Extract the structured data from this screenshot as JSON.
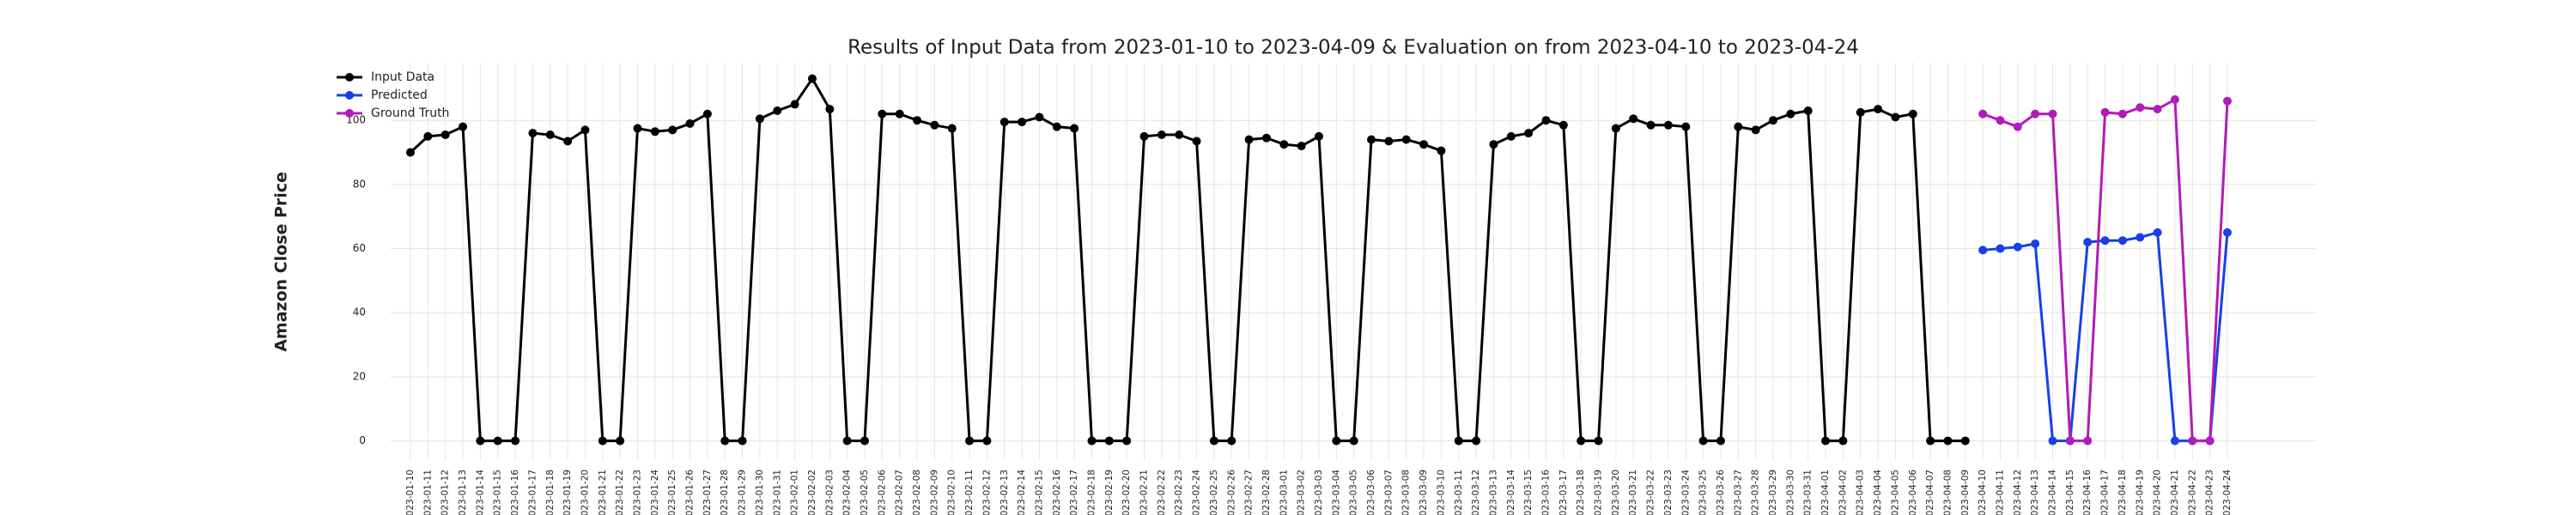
{
  "chart_data": {
    "type": "line",
    "title": "Results of Input Data from 2023-01-10 to 2023-04-09 & Evaluation on from 2023-04-10 to 2023-04-24",
    "ylabel": "Amazon Close Price",
    "categories": [
      "2023-01-10",
      "2023-01-11",
      "2023-01-12",
      "2023-01-13",
      "2023-01-14",
      "2023-01-15",
      "2023-01-16",
      "2023-01-17",
      "2023-01-18",
      "2023-01-19",
      "2023-01-20",
      "2023-01-21",
      "2023-01-22",
      "2023-01-23",
      "2023-01-24",
      "2023-01-25",
      "2023-01-26",
      "2023-01-27",
      "2023-01-28",
      "2023-01-29",
      "2023-01-30",
      "2023-01-31",
      "2023-02-01",
      "2023-02-02",
      "2023-02-03",
      "2023-02-04",
      "2023-02-05",
      "2023-02-06",
      "2023-02-07",
      "2023-02-08",
      "2023-02-09",
      "2023-02-10",
      "2023-02-11",
      "2023-02-12",
      "2023-02-13",
      "2023-02-14",
      "2023-02-15",
      "2023-02-16",
      "2023-02-17",
      "2023-02-18",
      "2023-02-19",
      "2023-02-20",
      "2023-02-21",
      "2023-02-22",
      "2023-02-23",
      "2023-02-24",
      "2023-02-25",
      "2023-02-26",
      "2023-02-27",
      "2023-02-28",
      "2023-03-01",
      "2023-03-02",
      "2023-03-03",
      "2023-03-04",
      "2023-03-05",
      "2023-03-06",
      "2023-03-07",
      "2023-03-08",
      "2023-03-09",
      "2023-03-10",
      "2023-03-11",
      "2023-03-12",
      "2023-03-13",
      "2023-03-14",
      "2023-03-15",
      "2023-03-16",
      "2023-03-17",
      "2023-03-18",
      "2023-03-19",
      "2023-03-20",
      "2023-03-21",
      "2023-03-22",
      "2023-03-23",
      "2023-03-24",
      "2023-03-25",
      "2023-03-26",
      "2023-03-27",
      "2023-03-28",
      "2023-03-29",
      "2023-03-30",
      "2023-03-31",
      "2023-04-01",
      "2023-04-02",
      "2023-04-03",
      "2023-04-04",
      "2023-04-05",
      "2023-04-06",
      "2023-04-07",
      "2023-04-08",
      "2023-04-09",
      "2023-04-10",
      "2023-04-11",
      "2023-04-12",
      "2023-04-13",
      "2023-04-14",
      "2023-04-15",
      "2023-04-16",
      "2023-04-17",
      "2023-04-18",
      "2023-04-19",
      "2023-04-20",
      "2023-04-21",
      "2023-04-22",
      "2023-04-23",
      "2023-04-24"
    ],
    "series": [
      {
        "name": "Input Data",
        "color": "#000000",
        "values": [
          90,
          95,
          95.5,
          98,
          0,
          0,
          0,
          96,
          95.5,
          93.5,
          97,
          0,
          0,
          97.5,
          96.5,
          97,
          99,
          102,
          0,
          0,
          100.5,
          103,
          105,
          113,
          103.5,
          0,
          0,
          102,
          102,
          100,
          98.5,
          97.5,
          0,
          0,
          99.5,
          99.5,
          101,
          98,
          97.5,
          0,
          0,
          0,
          95,
          95.5,
          95.5,
          93.5,
          0,
          0,
          94,
          94.5,
          92.5,
          92,
          95,
          0,
          0,
          94,
          93.5,
          94,
          92.5,
          90.5,
          0,
          0,
          92.5,
          95,
          96,
          100,
          98.5,
          0,
          0,
          97.5,
          100.5,
          98.5,
          98.5,
          98,
          0,
          0,
          98,
          97,
          100,
          102,
          103,
          0,
          0,
          102.5,
          103.5,
          101,
          102,
          0,
          0,
          0,
          null,
          null,
          null,
          null,
          null,
          null,
          null,
          null,
          null,
          null,
          null,
          null,
          null,
          null,
          null
        ]
      },
      {
        "name": "Predicted",
        "color": "#1740e6",
        "values": [
          null,
          null,
          null,
          null,
          null,
          null,
          null,
          null,
          null,
          null,
          null,
          null,
          null,
          null,
          null,
          null,
          null,
          null,
          null,
          null,
          null,
          null,
          null,
          null,
          null,
          null,
          null,
          null,
          null,
          null,
          null,
          null,
          null,
          null,
          null,
          null,
          null,
          null,
          null,
          null,
          null,
          null,
          null,
          null,
          null,
          null,
          null,
          null,
          null,
          null,
          null,
          null,
          null,
          null,
          null,
          null,
          null,
          null,
          null,
          null,
          null,
          null,
          null,
          null,
          null,
          null,
          null,
          null,
          null,
          null,
          null,
          null,
          null,
          null,
          null,
          null,
          null,
          null,
          null,
          null,
          null,
          null,
          null,
          null,
          null,
          null,
          null,
          null,
          null,
          null,
          59.5,
          60,
          60.5,
          61.5,
          0,
          0,
          62,
          62.5,
          62.5,
          63.5,
          65,
          0,
          0,
          0,
          65
        ]
      },
      {
        "name": "Ground Truth",
        "color": "#b01cb8",
        "values": [
          null,
          null,
          null,
          null,
          null,
          null,
          null,
          null,
          null,
          null,
          null,
          null,
          null,
          null,
          null,
          null,
          null,
          null,
          null,
          null,
          null,
          null,
          null,
          null,
          null,
          null,
          null,
          null,
          null,
          null,
          null,
          null,
          null,
          null,
          null,
          null,
          null,
          null,
          null,
          null,
          null,
          null,
          null,
          null,
          null,
          null,
          null,
          null,
          null,
          null,
          null,
          null,
          null,
          null,
          null,
          null,
          null,
          null,
          null,
          null,
          null,
          null,
          null,
          null,
          null,
          null,
          null,
          null,
          null,
          null,
          null,
          null,
          null,
          null,
          null,
          null,
          null,
          null,
          null,
          null,
          null,
          null,
          null,
          null,
          null,
          null,
          null,
          null,
          null,
          null,
          102,
          100,
          98,
          102,
          102,
          0,
          0,
          102.5,
          102,
          104,
          103.5,
          106.5,
          0,
          0,
          106
        ]
      }
    ],
    "ylim": [
      -6,
      118
    ],
    "yticks": [
      0,
      20,
      40,
      60,
      80,
      100
    ],
    "grid": true,
    "legend": "upper left"
  }
}
